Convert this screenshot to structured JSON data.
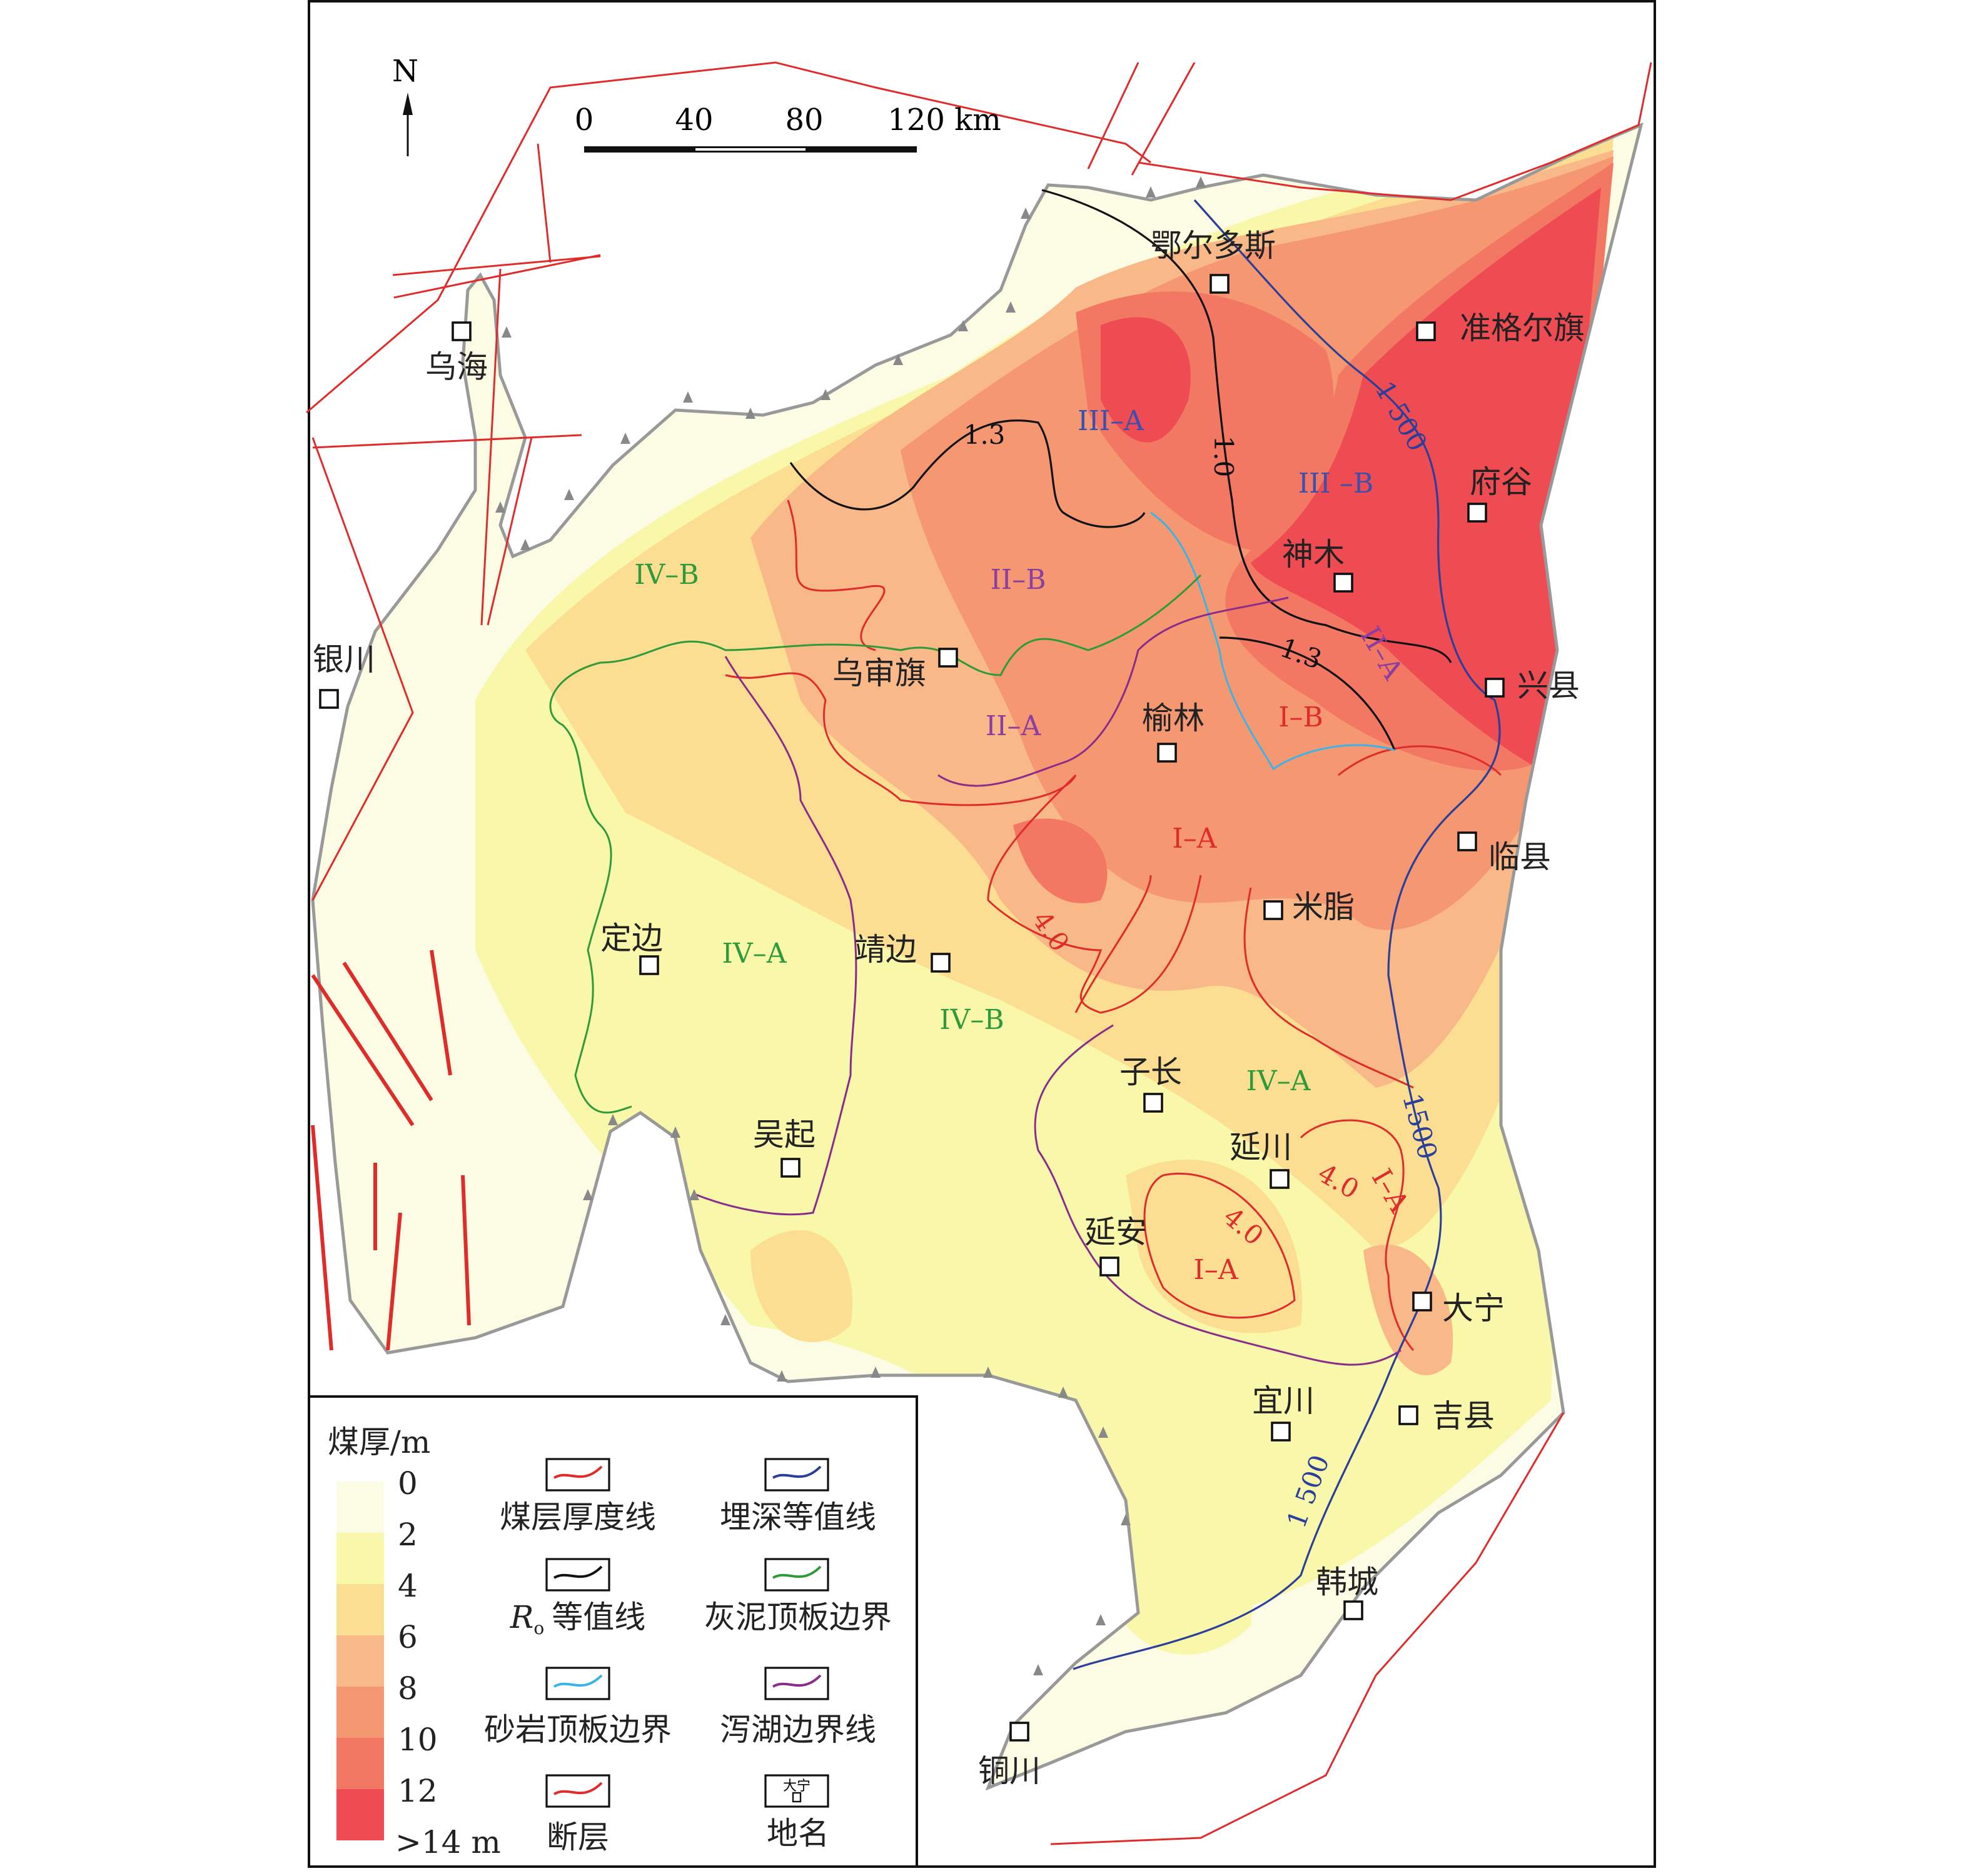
{
  "map": {
    "north_label": "N",
    "scale_bar": {
      "ticks": [
        "0",
        "40",
        "80",
        "120 km"
      ]
    },
    "places": [
      "鄂尔多斯",
      "准格尔旗",
      "乌海",
      "府谷",
      "神木",
      "银川",
      "乌审旗",
      "兴县",
      "榆林",
      "临县",
      "米脂",
      "定边",
      "靖边",
      "子长",
      "吴起",
      "延川",
      "延安",
      "大宁",
      "吉县",
      "宜川",
      "韩城",
      "铜川"
    ],
    "zones": [
      {
        "label": "III–A",
        "color": "#3b4fb0"
      },
      {
        "label": "III –B",
        "color": "#3b4fb0"
      },
      {
        "label": "II–B",
        "color": "#8a3fa0"
      },
      {
        "label": "IV–B",
        "color": "#2e9a3a"
      },
      {
        "label": "II–A",
        "color": "#8a3fa0"
      },
      {
        "label": "II–A",
        "color": "#8a3fa0"
      },
      {
        "label": "I–B",
        "color": "#e02b2b"
      },
      {
        "label": "I–A",
        "color": "#e02b2b"
      },
      {
        "label": "IV–A",
        "color": "#2e9a3a"
      },
      {
        "label": "IV–B",
        "color": "#2e9a3a"
      },
      {
        "label": "IV–A",
        "color": "#2e9a3a"
      },
      {
        "label": "I–A",
        "color": "#e02b2b"
      },
      {
        "label": "I–A",
        "color": "#e02b2b"
      }
    ],
    "contour_labels": [
      {
        "label": "1.3",
        "color": "#111"
      },
      {
        "label": "1.0",
        "color": "#111"
      },
      {
        "label": "1.3",
        "color": "#111"
      },
      {
        "label": "1 500",
        "color": "#2b3f9a"
      },
      {
        "label": "1500",
        "color": "#2b3f9a"
      },
      {
        "label": "1 500",
        "color": "#2b3f9a"
      },
      {
        "label": "4.0",
        "color": "#e02b2b"
      },
      {
        "label": "4.0",
        "color": "#e02b2b"
      },
      {
        "label": "4.0",
        "color": "#e02b2b"
      }
    ]
  },
  "legend": {
    "thickness_title": "煤厚/m",
    "thickness_classes": [
      "0",
      "2",
      "4",
      "6",
      "8",
      "10",
      "12",
      ">14 m"
    ],
    "thickness_colors": [
      "#fcfbe3",
      "#f9f7aa",
      "#fbde91",
      "#f9b887",
      "#f59872",
      "#f37863",
      "#ef4b52"
    ],
    "lines": [
      {
        "label": "煤层厚度线",
        "color": "#e02b2b"
      },
      {
        "label": "埋深等值线",
        "color": "#2b3f9a"
      },
      {
        "label_main": "R",
        "label_sub": "o",
        "label_rest": "等值线",
        "color": "#111111"
      },
      {
        "label": "灰泥顶板边界",
        "color": "#2e9a3a"
      },
      {
        "label": "砂岩顶板边界",
        "color": "#3ab4e6"
      },
      {
        "label": "泻湖边界线",
        "color": "#8a2a8a"
      },
      {
        "label": "断层",
        "color": "#e02b2b"
      },
      {
        "label": "地名",
        "sample": "大宁"
      }
    ]
  }
}
